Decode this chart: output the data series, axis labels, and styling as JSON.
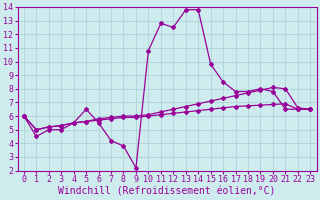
{
  "x_ticks": [
    0,
    1,
    2,
    3,
    4,
    5,
    6,
    7,
    8,
    9,
    10,
    11,
    12,
    13,
    14,
    15,
    16,
    17,
    18,
    19,
    20,
    21,
    22,
    23
  ],
  "ylim": [
    2,
    14
  ],
  "yticks": [
    2,
    3,
    4,
    5,
    6,
    7,
    8,
    9,
    10,
    11,
    12,
    13,
    14
  ],
  "xlabel": "Windchill (Refroidissement éolien,°C)",
  "bg_color": "#ceeced",
  "grid_color": "#b0d8da",
  "line_color": "#990099",
  "line1_y": [
    6.0,
    4.5,
    5.0,
    5.0,
    5.5,
    6.5,
    5.5,
    4.2,
    3.8,
    2.2,
    10.8,
    12.8,
    12.5,
    13.8,
    13.8,
    9.8,
    8.5,
    7.8,
    7.8,
    8.0,
    7.8,
    6.5,
    6.5,
    6.5
  ],
  "line2_y": [
    6.0,
    5.0,
    5.2,
    5.3,
    5.5,
    5.6,
    5.8,
    5.9,
    6.0,
    6.0,
    6.1,
    6.3,
    6.5,
    6.7,
    6.9,
    7.1,
    7.3,
    7.5,
    7.7,
    7.9,
    8.1,
    8.0,
    6.6,
    6.5
  ],
  "line3_y": [
    6.0,
    5.0,
    5.2,
    5.3,
    5.5,
    5.6,
    5.7,
    5.8,
    5.9,
    5.9,
    6.0,
    6.1,
    6.2,
    6.3,
    6.4,
    6.5,
    6.6,
    6.7,
    6.75,
    6.8,
    6.85,
    6.9,
    6.5,
    6.5
  ],
  "font_family": "monospace",
  "font_size_label": 7,
  "font_size_tick": 6,
  "marker": "D",
  "marker_size": 2,
  "linewidth": 0.9
}
